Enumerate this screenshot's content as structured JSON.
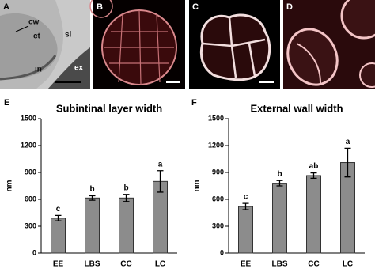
{
  "panels": {
    "labels": [
      "A",
      "B",
      "C",
      "D"
    ],
    "annotations": [
      "cw",
      "ct",
      "sl",
      "in",
      "ex"
    ]
  },
  "chart_data": [
    {
      "type": "bar",
      "panel": "E",
      "title": "Subintinal layer width",
      "ylabel": "nm",
      "categories": [
        "EE",
        "LBS",
        "CC",
        "LC"
      ],
      "values": [
        390,
        615,
        615,
        800
      ],
      "errors": [
        30,
        25,
        40,
        120
      ],
      "letters": [
        "c",
        "b",
        "b",
        "a"
      ],
      "color": "#8c8c8c",
      "ylim": [
        0,
        1500
      ],
      "yticks": [
        0,
        300,
        600,
        900,
        1200,
        1500
      ]
    },
    {
      "type": "bar",
      "panel": "F",
      "title": "External wall width",
      "ylabel": "nm",
      "categories": [
        "EE",
        "LBS",
        "CC",
        "LC"
      ],
      "values": [
        520,
        780,
        865,
        1010
      ],
      "errors": [
        35,
        30,
        30,
        160
      ],
      "letters": [
        "c",
        "b",
        "ab",
        "a"
      ],
      "color": "#8c8c8c",
      "ylim": [
        0,
        1500
      ],
      "yticks": [
        0,
        300,
        600,
        900,
        1200,
        1500
      ]
    }
  ]
}
